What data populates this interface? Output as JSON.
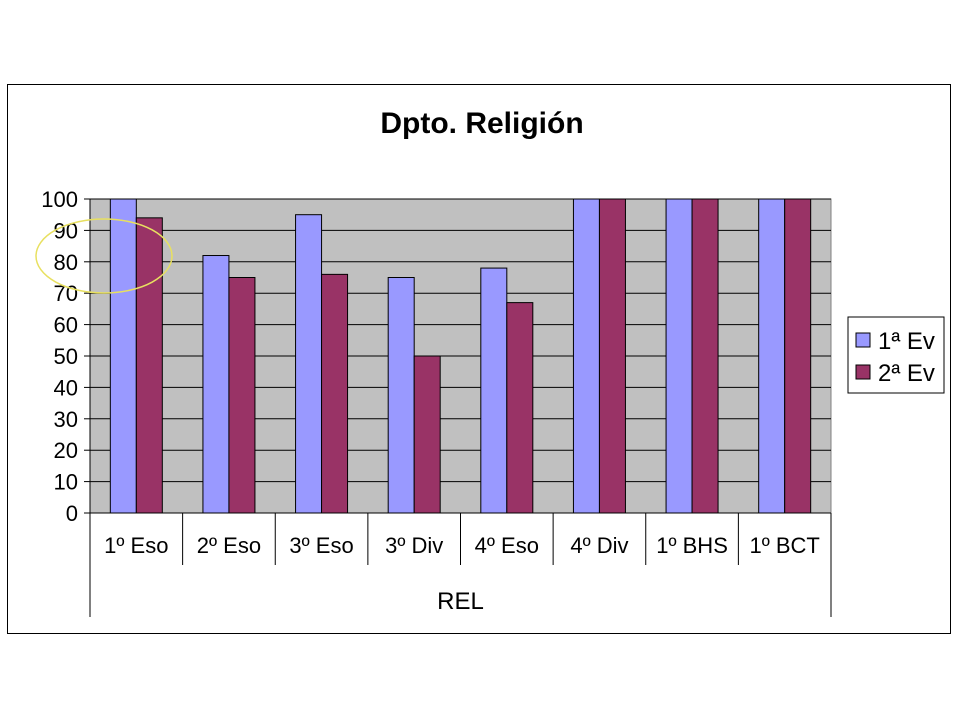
{
  "chart_data": {
    "type": "bar",
    "title": "Dpto. Religión",
    "xlabel": "",
    "ylabel": "",
    "group_label": "REL",
    "categories": [
      "1º Eso",
      "2º Eso",
      "3º Eso",
      "3º Div",
      "4º Eso",
      "4º Div",
      "1º BHS",
      "1º BCT"
    ],
    "series": [
      {
        "name": "1ª Ev",
        "color": "#9999ff",
        "values": [
          100,
          82,
          95,
          75,
          78,
          100,
          100,
          100
        ]
      },
      {
        "name": "2ª Ev",
        "color": "#993366",
        "values": [
          94,
          75,
          76,
          50,
          67,
          100,
          100,
          100
        ]
      }
    ],
    "ylim": [
      0,
      100
    ],
    "yticks": [
      0,
      10,
      20,
      30,
      40,
      50,
      60,
      70,
      80,
      90,
      100
    ],
    "grid": true,
    "legend_position": "right",
    "plot_background": "#c0c0c0",
    "annotation": {
      "shape": "ellipse",
      "color": "#e8e060",
      "category": "1º Eso"
    }
  }
}
